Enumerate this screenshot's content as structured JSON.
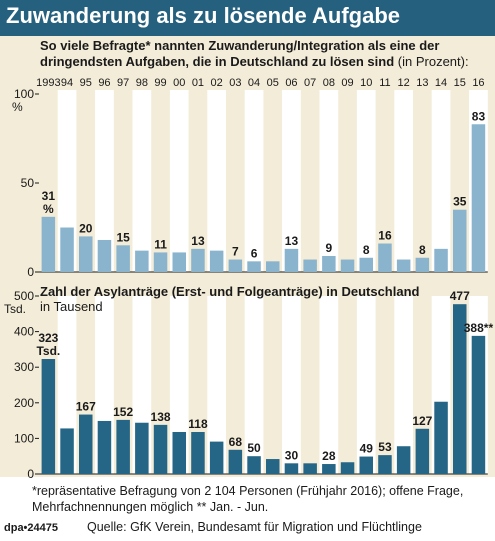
{
  "header": {
    "title": "Zuwanderung als zu lösende Aufgabe"
  },
  "chart_data": [
    {
      "type": "bar",
      "title": "So viele Befragte* nannten Zuwanderung/Integration als eine der dringendsten Aufgaben, die in Deutschland zu lösen sind",
      "title_unit": "(in Prozent):",
      "unit_label": "%",
      "categories": [
        "1993",
        "94",
        "95",
        "96",
        "97",
        "98",
        "99",
        "00",
        "01",
        "02",
        "03",
        "04",
        "05",
        "06",
        "07",
        "08",
        "09",
        "10",
        "11",
        "12",
        "13",
        "14",
        "15",
        "16"
      ],
      "values": [
        31,
        25,
        20,
        18,
        15,
        12,
        11,
        11,
        13,
        12,
        7,
        6,
        6,
        13,
        7,
        9,
        7,
        8,
        16,
        7,
        8,
        13,
        35,
        83
      ],
      "data_labels": [
        "31",
        "",
        "20",
        "",
        "15",
        "",
        "11",
        "",
        "13",
        "",
        "7",
        "6",
        "",
        "13",
        "",
        "9",
        "",
        "8",
        "16",
        "",
        "8",
        "",
        "35",
        "83"
      ],
      "data_label_extra": {
        "index": 0,
        "text": "%"
      },
      "yticks": [
        0,
        50,
        100
      ],
      "ylim": [
        0,
        100
      ],
      "grid": false,
      "bar_color": "#8ab4cd",
      "stripe_color": "#ffffff"
    },
    {
      "type": "bar",
      "title": "Zahl der Asylanträge (Erst- und Folgeanträge) in Deutschland",
      "subtitle": "in Tausend",
      "unit_label": "Tsd.",
      "categories": [
        "1993",
        "94",
        "95",
        "96",
        "97",
        "98",
        "99",
        "00",
        "01",
        "02",
        "03",
        "04",
        "05",
        "06",
        "07",
        "08",
        "09",
        "10",
        "11",
        "12",
        "13",
        "14",
        "15",
        "16"
      ],
      "values": [
        323,
        128,
        167,
        149,
        152,
        144,
        138,
        118,
        118,
        91,
        68,
        50,
        42,
        30,
        30,
        28,
        33,
        49,
        53,
        78,
        127,
        203,
        477,
        388
      ],
      "data_labels": [
        "323",
        "",
        "167",
        "",
        "152",
        "",
        "138",
        "",
        "118",
        "",
        "68",
        "50",
        "",
        "30",
        "",
        "28",
        "",
        "49",
        "53",
        "",
        "127",
        "",
        "477",
        "388**"
      ],
      "data_label_extra": {
        "index": 0,
        "text": "Tsd."
      },
      "yticks": [
        0,
        100,
        200,
        300,
        400,
        500
      ],
      "ylim": [
        0,
        500
      ],
      "grid": false,
      "bar_color": "#256585",
      "stripe_color": "#ffffff"
    }
  ],
  "footnotes": {
    "line1": "*repräsentative Befragung von 2 104 Personen (Frühjahr 2016); offene Frage,",
    "line2": "Mehrfachnennungen möglich    ** Jan. - Jun."
  },
  "footer": {
    "logo": "dpa•24475",
    "source": "Quelle: GfK Verein, Bundesamt für Migration und Flüchtlinge"
  }
}
